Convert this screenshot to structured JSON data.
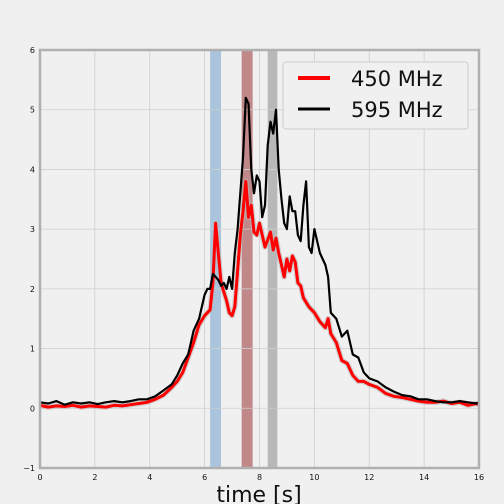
{
  "chart_data": {
    "type": "line",
    "title": "",
    "xlabel": "time [s]",
    "ylabel": "",
    "xlim": [
      0,
      16
    ],
    "ylim": [
      -1,
      6
    ],
    "xticks": [
      0,
      2,
      4,
      6,
      8,
      10,
      12,
      14,
      16
    ],
    "yticks": [
      -1,
      0,
      1,
      2,
      3,
      4,
      5,
      6
    ],
    "xtick_labels": [
      "0",
      "2",
      "4",
      "6",
      "8",
      "10",
      "12",
      "14",
      "16"
    ],
    "ytick_labels": [
      "−1",
      "0",
      "1",
      "2",
      "3",
      "4",
      "5",
      "6"
    ],
    "grid": true,
    "legend_position": "top-right",
    "shaded_bands": [
      {
        "x0": 6.2,
        "x1": 6.6,
        "color": "#a9c4dc"
      },
      {
        "x0": 7.35,
        "x1": 7.75,
        "color": "#c08888"
      },
      {
        "x0": 8.3,
        "x1": 8.65,
        "color": "#b8b8b8"
      }
    ],
    "series": [
      {
        "name": "450 MHz",
        "color": "#ff0000",
        "x": [
          0.0,
          0.3,
          0.6,
          0.9,
          1.2,
          1.5,
          1.8,
          2.1,
          2.4,
          2.7,
          3.0,
          3.3,
          3.6,
          3.9,
          4.2,
          4.5,
          4.8,
          5.0,
          5.2,
          5.4,
          5.6,
          5.8,
          6.0,
          6.2,
          6.3,
          6.4,
          6.5,
          6.6,
          6.7,
          6.8,
          6.9,
          7.0,
          7.1,
          7.2,
          7.3,
          7.4,
          7.5,
          7.6,
          7.7,
          7.8,
          7.9,
          8.0,
          8.2,
          8.4,
          8.5,
          8.6,
          8.7,
          8.8,
          8.9,
          9.0,
          9.1,
          9.2,
          9.3,
          9.4,
          9.5,
          9.6,
          9.8,
          10.0,
          10.2,
          10.4,
          10.5,
          10.6,
          10.8,
          11.0,
          11.2,
          11.4,
          11.6,
          11.8,
          12.0,
          12.3,
          12.6,
          12.9,
          13.2,
          13.5,
          13.8,
          14.1,
          14.4,
          14.7,
          15.0,
          15.3,
          15.6,
          15.9,
          16.0
        ],
        "values": [
          0.05,
          0.02,
          0.04,
          0.03,
          0.05,
          0.02,
          0.04,
          0.03,
          0.02,
          0.05,
          0.04,
          0.06,
          0.08,
          0.1,
          0.15,
          0.22,
          0.35,
          0.45,
          0.6,
          0.85,
          1.1,
          1.4,
          1.55,
          1.65,
          2.1,
          3.1,
          2.6,
          2.1,
          1.95,
          1.8,
          1.6,
          1.55,
          1.7,
          2.3,
          2.9,
          3.3,
          3.8,
          3.2,
          3.4,
          2.95,
          2.9,
          3.1,
          2.7,
          2.95,
          2.65,
          2.85,
          2.6,
          2.4,
          2.2,
          2.5,
          2.3,
          2.55,
          2.45,
          2.1,
          2.05,
          1.85,
          1.7,
          1.6,
          1.45,
          1.35,
          1.5,
          1.25,
          1.1,
          0.8,
          0.75,
          0.55,
          0.45,
          0.45,
          0.4,
          0.35,
          0.25,
          0.2,
          0.18,
          0.15,
          0.12,
          0.1,
          0.1,
          0.12,
          0.08,
          0.1,
          0.05,
          0.08,
          0.06
        ]
      },
      {
        "name": "595 MHz",
        "color": "#000000",
        "x": [
          0.0,
          0.3,
          0.6,
          0.9,
          1.2,
          1.5,
          1.8,
          2.1,
          2.4,
          2.7,
          3.0,
          3.3,
          3.6,
          3.9,
          4.2,
          4.5,
          4.8,
          5.0,
          5.2,
          5.4,
          5.6,
          5.8,
          6.0,
          6.1,
          6.2,
          6.3,
          6.4,
          6.5,
          6.6,
          6.7,
          6.8,
          6.9,
          7.0,
          7.1,
          7.2,
          7.3,
          7.4,
          7.5,
          7.6,
          7.7,
          7.8,
          7.9,
          8.0,
          8.1,
          8.2,
          8.3,
          8.4,
          8.5,
          8.6,
          8.7,
          8.8,
          8.9,
          9.0,
          9.1,
          9.2,
          9.3,
          9.4,
          9.5,
          9.6,
          9.7,
          9.8,
          9.9,
          10.0,
          10.2,
          10.4,
          10.5,
          10.6,
          10.8,
          11.0,
          11.2,
          11.4,
          11.6,
          11.8,
          12.0,
          12.3,
          12.6,
          12.9,
          13.2,
          13.5,
          13.8,
          14.1,
          14.4,
          14.7,
          15.0,
          15.3,
          15.6,
          15.9,
          16.0
        ],
        "values": [
          0.1,
          0.08,
          0.12,
          0.06,
          0.1,
          0.08,
          0.1,
          0.07,
          0.1,
          0.12,
          0.1,
          0.12,
          0.15,
          0.15,
          0.2,
          0.3,
          0.4,
          0.55,
          0.75,
          0.9,
          1.3,
          1.5,
          1.9,
          2.0,
          2.0,
          2.25,
          2.2,
          2.15,
          2.05,
          2.1,
          2.0,
          2.2,
          2.0,
          2.6,
          3.0,
          3.6,
          4.2,
          5.2,
          5.1,
          4.0,
          3.6,
          3.9,
          3.8,
          3.2,
          3.4,
          4.4,
          4.8,
          4.6,
          5.0,
          4.0,
          3.5,
          3.1,
          3.0,
          3.55,
          3.3,
          3.3,
          2.9,
          2.8,
          3.4,
          3.8,
          2.7,
          2.6,
          3.0,
          2.6,
          2.4,
          2.2,
          1.6,
          1.5,
          1.2,
          1.3,
          0.9,
          0.85,
          0.6,
          0.5,
          0.45,
          0.35,
          0.28,
          0.22,
          0.2,
          0.15,
          0.15,
          0.12,
          0.1,
          0.1,
          0.12,
          0.1,
          0.08,
          0.1
        ]
      }
    ]
  }
}
